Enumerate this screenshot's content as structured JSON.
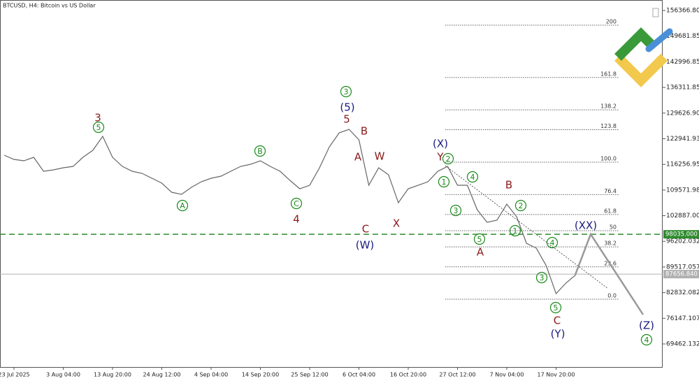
{
  "chart_data": {
    "type": "line",
    "title": "BTCUSD, H4:  Bitcoin vs US Dollar",
    "categories": [
      null,
      "23 Jul 2025",
      null,
      null,
      null,
      null,
      "3 Aug 04:00",
      null,
      null,
      null,
      null,
      "13 Aug 20:00",
      null,
      null,
      null,
      null,
      "24 Aug 12:00",
      null,
      null,
      null,
      null,
      "4 Sep 04:00",
      null,
      null,
      null,
      null,
      "14 Sep 20:00",
      null,
      null,
      null,
      null,
      "25 Sep 12:00",
      null,
      null,
      null,
      null,
      "6 Oct 04:00",
      null,
      null,
      null,
      null,
      "16 Oct 20:00",
      null,
      null,
      null,
      null,
      "27 Oct 12:00",
      null,
      null,
      null,
      null,
      "7 Nov 04:00",
      null,
      null,
      null,
      null,
      "17 Nov 20:00",
      null,
      null
    ],
    "series": [
      {
        "name": "BTCUSD",
        "color": "#666666",
        "values": [
          118652,
          117558,
          117194,
          118105,
          114461,
          114825,
          115372,
          115736,
          118105,
          119927,
          123571,
          118105,
          115736,
          114461,
          113914,
          112639,
          111364,
          108995,
          108448,
          110270,
          111728,
          112639,
          113186,
          114461,
          115736,
          116283,
          117194,
          115736,
          114461,
          112092,
          109906,
          110817,
          115372,
          120838,
          124482,
          125393,
          122660,
          110817,
          115372,
          113550,
          106262,
          109906,
          110817,
          111728,
          114461,
          115736,
          110817,
          110817,
          104440,
          101160,
          101707,
          105898,
          102618,
          95694,
          94419,
          89864,
          82576,
          85309,
          87495
        ]
      }
    ],
    "ylim": [
      63450,
      159100
    ],
    "yticks": [
      156366.807,
      149681.853,
      142996.857,
      136311.858,
      129626.907,
      122941.934,
      116256.957,
      109571.982,
      102887.007,
      96202.032,
      89517.057,
      82832.082,
      76147.107,
      69462.132
    ],
    "price_lines": [
      {
        "value": 98035,
        "label": "98035.000",
        "color": "#2e8b2e"
      },
      {
        "value": 87656.84,
        "label": "87656.840",
        "color": "#b0b0b0"
      }
    ],
    "fibonacci": {
      "range": [
        81118,
        116829
      ],
      "levels": [
        200,
        161.8,
        138.2,
        123.8,
        {
          "value": 100,
          "label": "100.0"
        },
        76.4,
        61.8,
        50,
        38.2,
        23.6,
        {
          "value": 0,
          "label": "0.0"
        }
      ]
    },
    "annotations": [
      {
        "text": "3",
        "color": "#8b1a1a",
        "circled": false
      },
      {
        "text": "5",
        "color": "#1a8a1a",
        "circled": true
      },
      {
        "text": "A",
        "color": "#1a8a1a",
        "circled": true
      },
      {
        "text": "B",
        "color": "#1a8a1a",
        "circled": true
      },
      {
        "text": "C",
        "color": "#1a8a1a",
        "circled": true
      },
      {
        "text": "4",
        "color": "#8b1a1a",
        "circled": false
      },
      {
        "text": "3",
        "color": "#1a8a1a",
        "circled": true
      },
      {
        "text": "(5)",
        "color": "#1a1a80",
        "circled": false
      },
      {
        "text": "5",
        "color": "#8b1a1a",
        "circled": false
      },
      {
        "text": "B",
        "color": "#8b1a1a",
        "circled": false
      },
      {
        "text": "A",
        "color": "#8b1a1a",
        "circled": false
      },
      {
        "text": "W",
        "color": "#8b1a1a",
        "circled": false
      },
      {
        "text": "C",
        "color": "#8b1a1a",
        "circled": false
      },
      {
        "text": "(W)",
        "color": "#1a1a80",
        "circled": false
      },
      {
        "text": "X",
        "color": "#8b1a1a",
        "circled": false
      },
      {
        "text": "(X)",
        "color": "#1a1a80",
        "circled": false
      },
      {
        "text": "Y",
        "color": "#8b1a1a",
        "circled": false
      },
      {
        "text": "2",
        "color": "#1a8a1a",
        "circled": true
      },
      {
        "text": "1",
        "color": "#1a8a1a",
        "circled": true
      },
      {
        "text": "4",
        "color": "#1a8a1a",
        "circled": true
      },
      {
        "text": "3",
        "color": "#1a8a1a",
        "circled": true
      },
      {
        "text": "5",
        "color": "#1a8a1a",
        "circled": true
      },
      {
        "text": "A",
        "color": "#8b1a1a",
        "circled": false
      },
      {
        "text": "B",
        "color": "#8b1a1a",
        "circled": false
      },
      {
        "text": "2",
        "color": "#1a8a1a",
        "circled": true
      },
      {
        "text": "1",
        "color": "#1a8a1a",
        "circled": true
      },
      {
        "text": "4",
        "color": "#1a8a1a",
        "circled": true
      },
      {
        "text": "3",
        "color": "#1a8a1a",
        "circled": true
      },
      {
        "text": "5",
        "color": "#1a8a1a",
        "circled": true
      },
      {
        "text": "C",
        "color": "#8b1a1a",
        "circled": false
      },
      {
        "text": "(Y)",
        "color": "#1a1a80",
        "circled": false
      },
      {
        "text": "(XX)",
        "color": "#1a1a80",
        "circled": false
      },
      {
        "text": "(Z)",
        "color": "#1a1a80",
        "circled": false
      },
      {
        "text": "4",
        "color": "#1a8a1a",
        "circled": true
      }
    ]
  }
}
